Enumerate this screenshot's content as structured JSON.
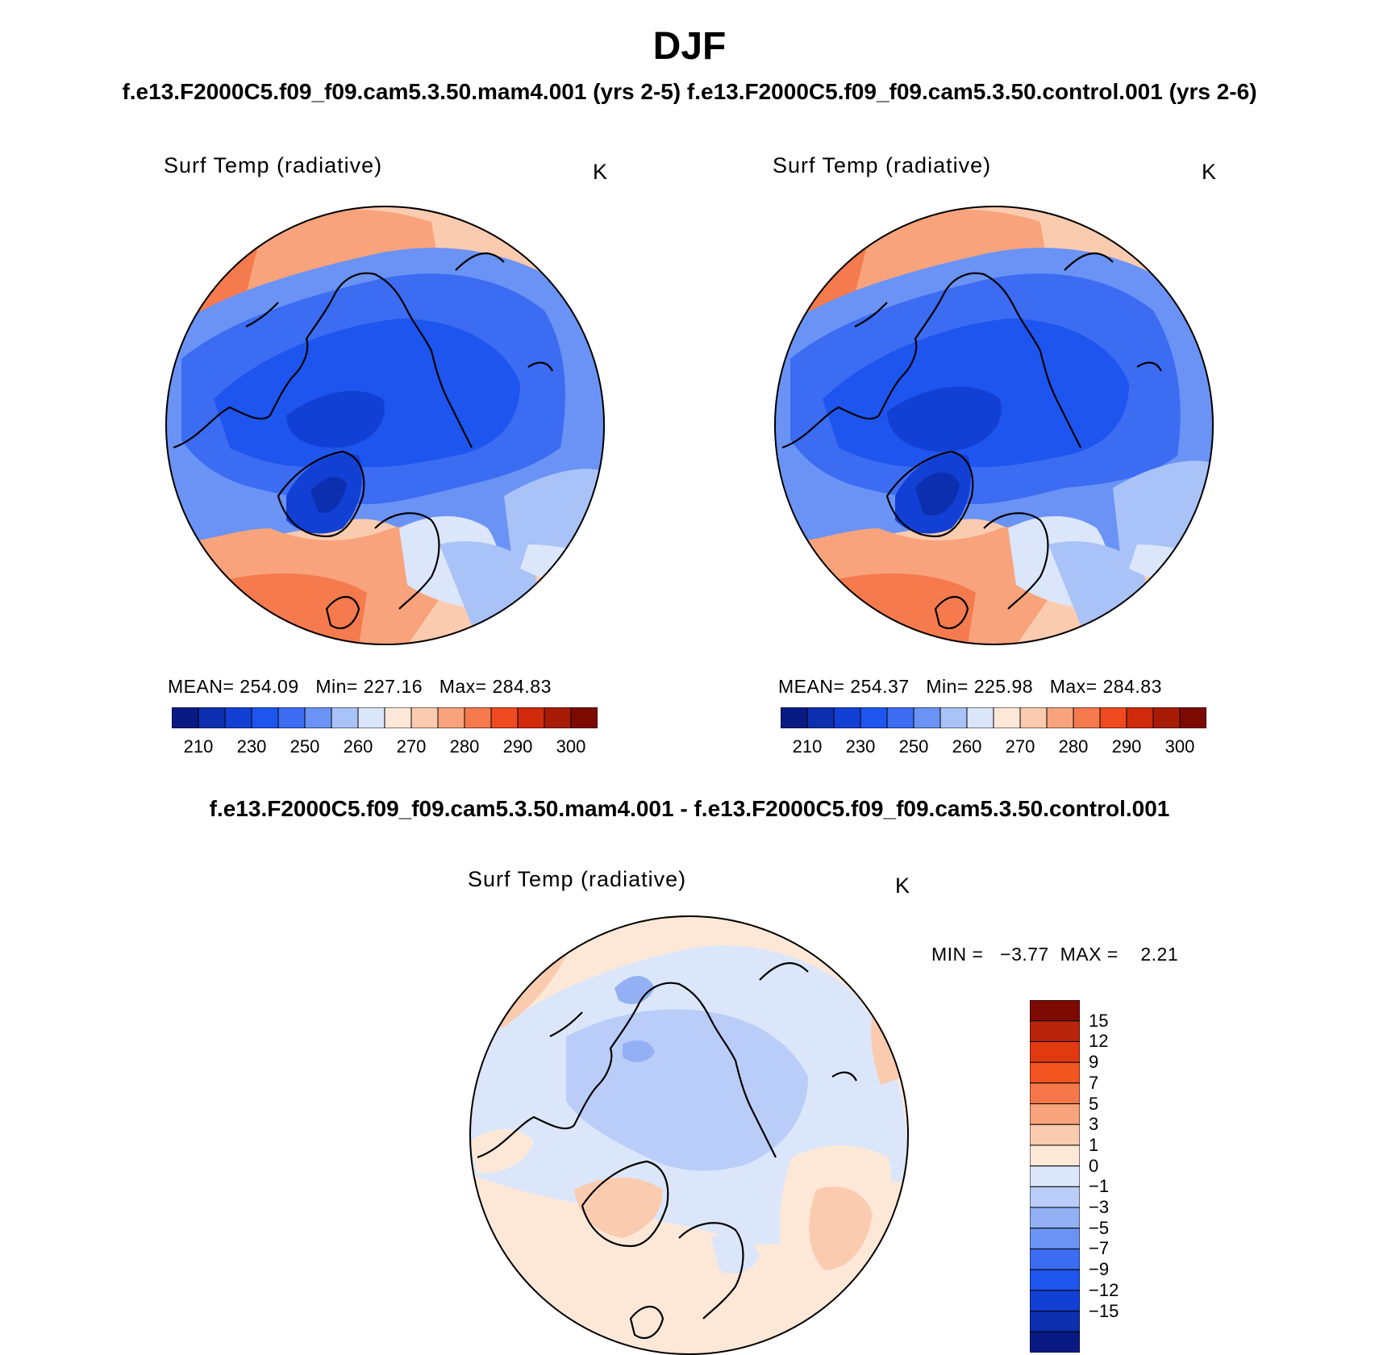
{
  "figure": {
    "season": "DJF",
    "run_titles": "f.e13.F2000C5.f09_f09.cam5.3.50.mam4.001 (yrs 2-5) f.e13.F2000C5.f09_f09.cam5.3.50.control.001 (yrs 2-6)",
    "diff_title": "f.e13.F2000C5.f09_f09.cam5.3.50.mam4.001 - f.e13.F2000C5.f09_f09.cam5.3.50.control.001"
  },
  "panels": [
    {
      "variable": "Surf Temp (radiative)",
      "units": "K",
      "mean_label": "MEAN=",
      "mean": "254.09",
      "min_label": "Min=",
      "min": "227.16",
      "max_label": "Max=",
      "max": "284.83"
    },
    {
      "variable": "Surf Temp (radiative)",
      "units": "K",
      "mean_label": "MEAN=",
      "mean": "254.37",
      "min_label": "Min=",
      "min": "225.98",
      "max_label": "Max=",
      "max": "284.83"
    }
  ],
  "diff_panel": {
    "variable": "Surf Temp (radiative)",
    "units": "K",
    "min_label": "MIN =",
    "min": "−3.77",
    "max_label": "MAX =",
    "max": "2.21"
  },
  "abs_colorbar": {
    "colors": [
      "#0a1a85",
      "#0c2fb0",
      "#1240d4",
      "#1e55ee",
      "#3b6cf2",
      "#6a93f5",
      "#a9c2f8",
      "#dbe6fb",
      "#fde8d8",
      "#fbcbb0",
      "#f8a37c",
      "#f57a4e",
      "#ef4a20",
      "#d02a0c",
      "#a81c06",
      "#7d0a02"
    ],
    "tick_labels": [
      "210",
      "230",
      "250",
      "260",
      "270",
      "280",
      "290",
      "300"
    ]
  },
  "diff_colorbar": {
    "colors": [
      "#7d0a02",
      "#b8250a",
      "#e23a10",
      "#f2551f",
      "#f5774a",
      "#f8a37c",
      "#fbcbb0",
      "#fde8d8",
      "#dbe6fb",
      "#b9cdf8",
      "#93b0f5",
      "#6a93f5",
      "#3b6cf2",
      "#1e55ee",
      "#1240d4",
      "#0c2fb0",
      "#0a1a85"
    ],
    "tick_labels": [
      "15",
      "12",
      "9",
      "7",
      "5",
      "3",
      "1",
      "0",
      "−1",
      "−3",
      "−5",
      "−7",
      "−9",
      "−12",
      "−15"
    ]
  },
  "icons": [
    "coastline-outline",
    "polar-stereographic-disc"
  ]
}
